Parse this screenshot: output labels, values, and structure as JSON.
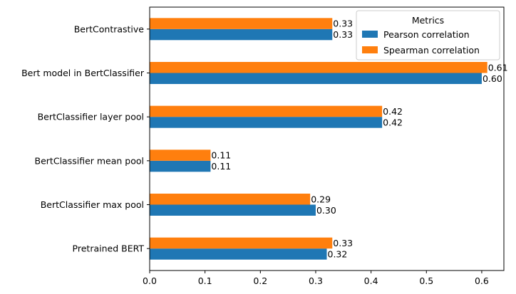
{
  "chart_data": {
    "type": "bar",
    "orientation": "horizontal",
    "categories": [
      "Pretrained BERT",
      "BertClassifier max pool",
      "BertClassifier mean pool",
      "BertClassifier layer pool",
      "Bert model in BertClassifier",
      "BertContrastive"
    ],
    "series": [
      {
        "name": "Pearson correlation",
        "color": "#1f77b4",
        "values": [
          0.32,
          0.3,
          0.11,
          0.42,
          0.6,
          0.33
        ],
        "labels": [
          "0.32",
          "0.30",
          "0.11",
          "0.42",
          "0.60",
          "0.33"
        ]
      },
      {
        "name": "Spearman correlation",
        "color": "#ff7f0e",
        "values": [
          0.33,
          0.29,
          0.11,
          0.42,
          0.61,
          0.33
        ],
        "labels": [
          "0.33",
          "0.29",
          "0.11",
          "0.42",
          "0.61",
          "0.33"
        ]
      }
    ],
    "xlim": [
      0,
      0.64
    ],
    "xticks": [
      0.0,
      0.1,
      0.2,
      0.3,
      0.4,
      0.5,
      0.6
    ],
    "xtick_labels": [
      "0.0",
      "0.1",
      "0.2",
      "0.3",
      "0.4",
      "0.5",
      "0.6"
    ],
    "legend": {
      "title": "Metrics",
      "placement": "top-right"
    },
    "grid": false
  }
}
